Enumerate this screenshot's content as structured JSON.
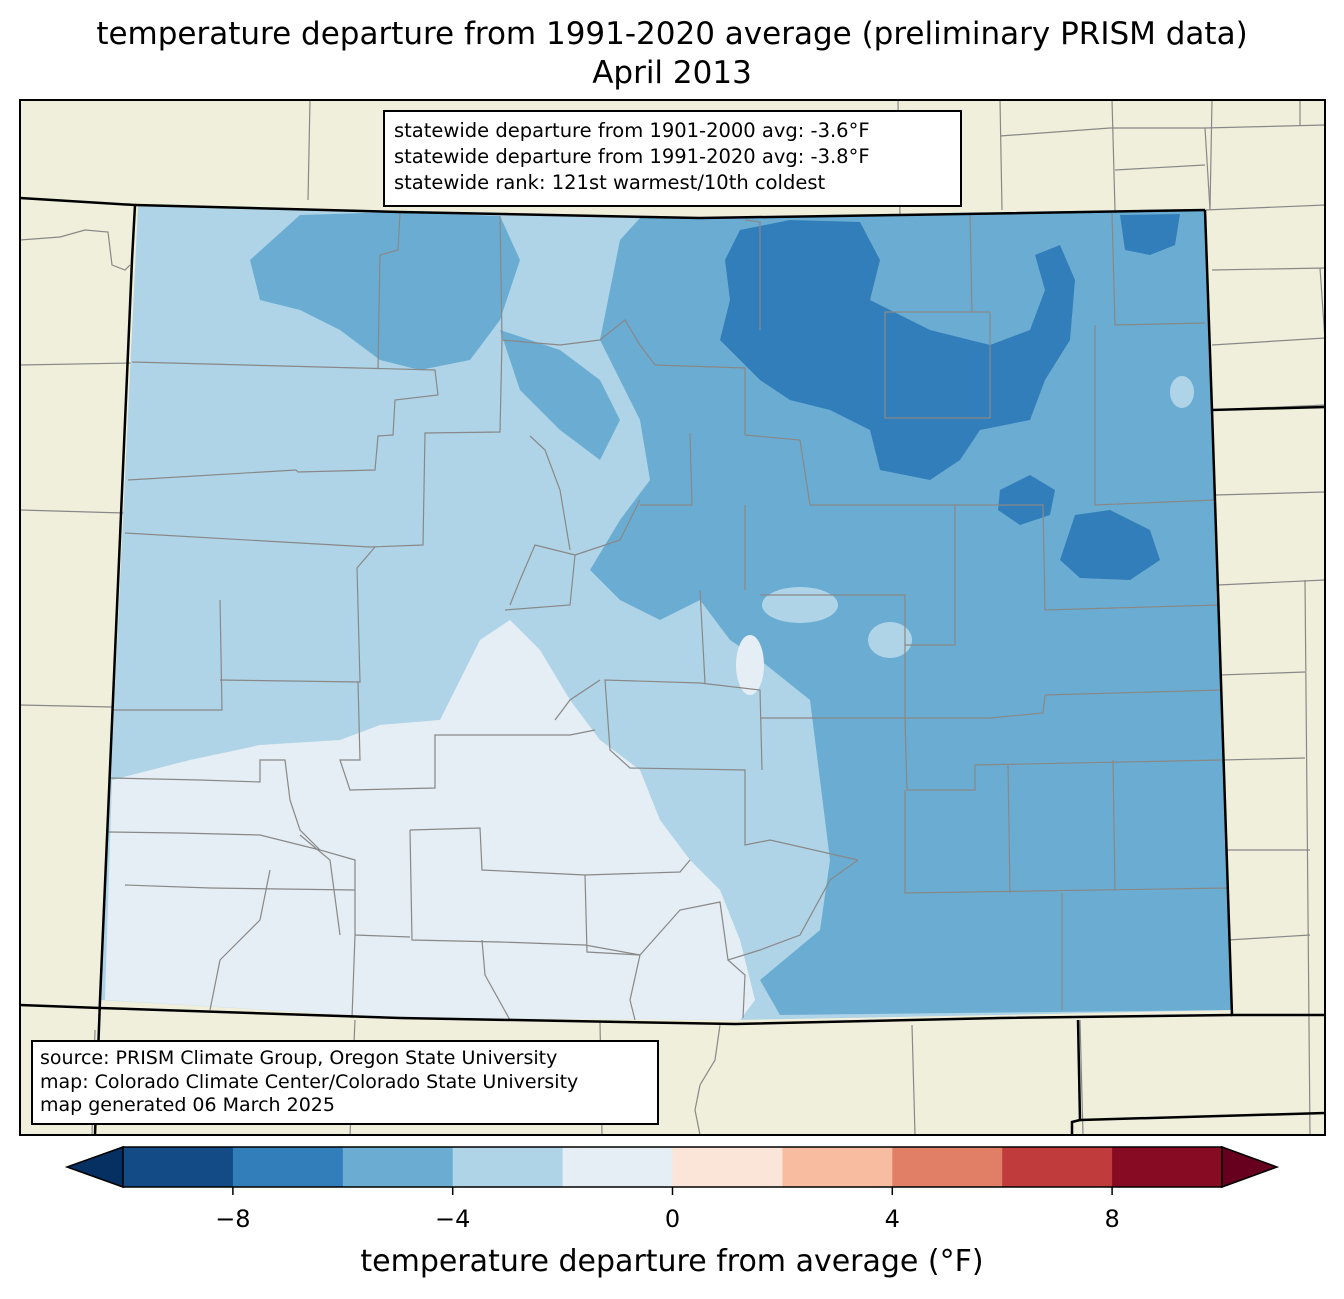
{
  "title": {
    "line1": "temperature departure from 1991-2020 average (preliminary PRISM data)",
    "line2": "April 2013"
  },
  "stats_box": {
    "line1": "statewide departure from 1901-2000 avg: -3.6°F",
    "line2": "statewide departure from 1991-2020 avg: -3.8°F",
    "line3": "statewide rank: 121st warmest/10th coldest"
  },
  "credits_box": {
    "line1": "source: PRISM Climate Group, Oregon State University",
    "line2": "map: Colorado Climate Center/Colorado State University",
    "line3": "map generated 06 March 2025"
  },
  "colorbar": {
    "label": "temperature departure from average (°F)",
    "ticks": [
      "−8",
      "−4",
      "0",
      "4",
      "8"
    ],
    "tick_values": [
      -8,
      -4,
      0,
      4,
      8
    ],
    "range": [
      -10,
      10
    ],
    "bin_width": 2,
    "colors": [
      "#053061",
      "#134b86",
      "#327eba",
      "#6badd2",
      "#b0d4e7",
      "#e5eef4",
      "#fbe5d8",
      "#f8bda1",
      "#e07f66",
      "#c03c3c",
      "#870b23",
      "#67001f"
    ]
  },
  "colors": {
    "land_background": "#f0efdc",
    "county_lines": "#888888",
    "state_lines": "#000000"
  }
}
